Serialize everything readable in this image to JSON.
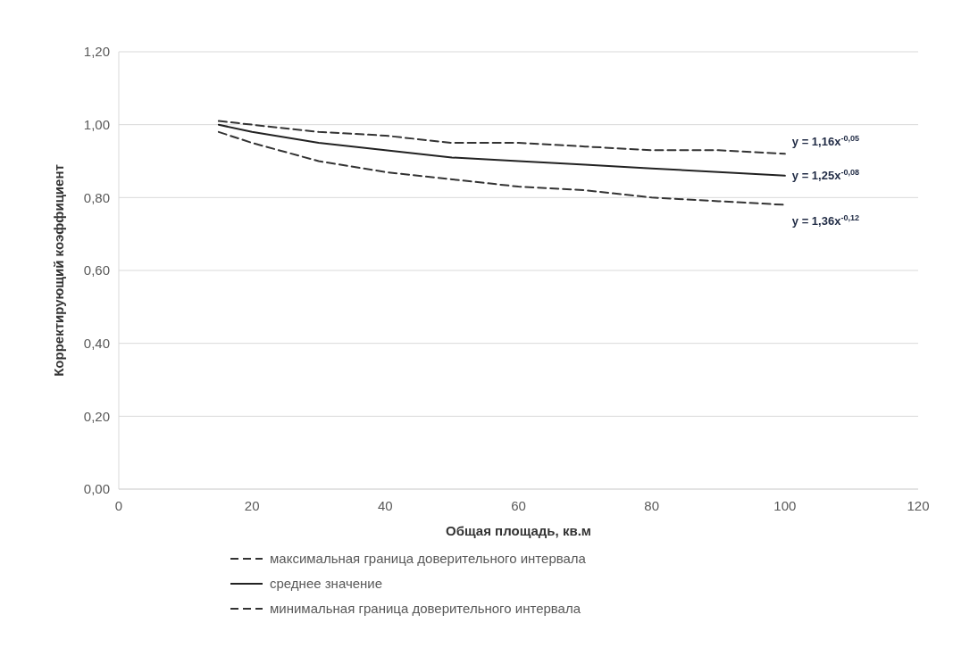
{
  "chart_data": {
    "type": "line",
    "xlabel": "Общая площадь, кв.м",
    "ylabel": "Корректирующий коэффициент",
    "x": [
      15,
      20,
      30,
      40,
      50,
      60,
      70,
      80,
      90,
      100
    ],
    "series": [
      {
        "name": "максимальная граница доверительного интервала",
        "color": "#333333",
        "line_style": "dashed",
        "values": [
          1.01,
          1.0,
          0.98,
          0.97,
          0.95,
          0.95,
          0.94,
          0.93,
          0.93,
          0.92
        ]
      },
      {
        "name": "среднее значение",
        "color": "#222222",
        "line_style": "solid",
        "values": [
          1.0,
          0.98,
          0.95,
          0.93,
          0.91,
          0.9,
          0.89,
          0.88,
          0.87,
          0.86
        ]
      },
      {
        "name": "минимальная граница доверительного интервала",
        "color": "#333333",
        "line_style": "dashed",
        "values": [
          0.98,
          0.95,
          0.9,
          0.87,
          0.85,
          0.83,
          0.82,
          0.8,
          0.79,
          0.78
        ]
      }
    ],
    "xlim": [
      0,
      120
    ],
    "xticks": [
      0,
      20,
      40,
      60,
      80,
      100,
      120
    ],
    "ylim": [
      0,
      1.2
    ],
    "yticks": [
      {
        "value": 0,
        "label": "0,00"
      },
      {
        "value": 0.2,
        "label": "0,20"
      },
      {
        "value": 0.4,
        "label": "0,40"
      },
      {
        "value": 0.6,
        "label": "0,60"
      },
      {
        "value": 0.8,
        "label": "0,80"
      },
      {
        "value": 1,
        "label": "1,00"
      },
      {
        "value": 1.2,
        "label": "1,20"
      }
    ],
    "grid": "y",
    "legend": "bottom",
    "marker": "none",
    "annotations": [
      "y = 1,16x$^{-0,05}$",
      "y = 1,25x$^{-0,08}$",
      "y = 1,36x$^{-0,12}$"
    ]
  }
}
